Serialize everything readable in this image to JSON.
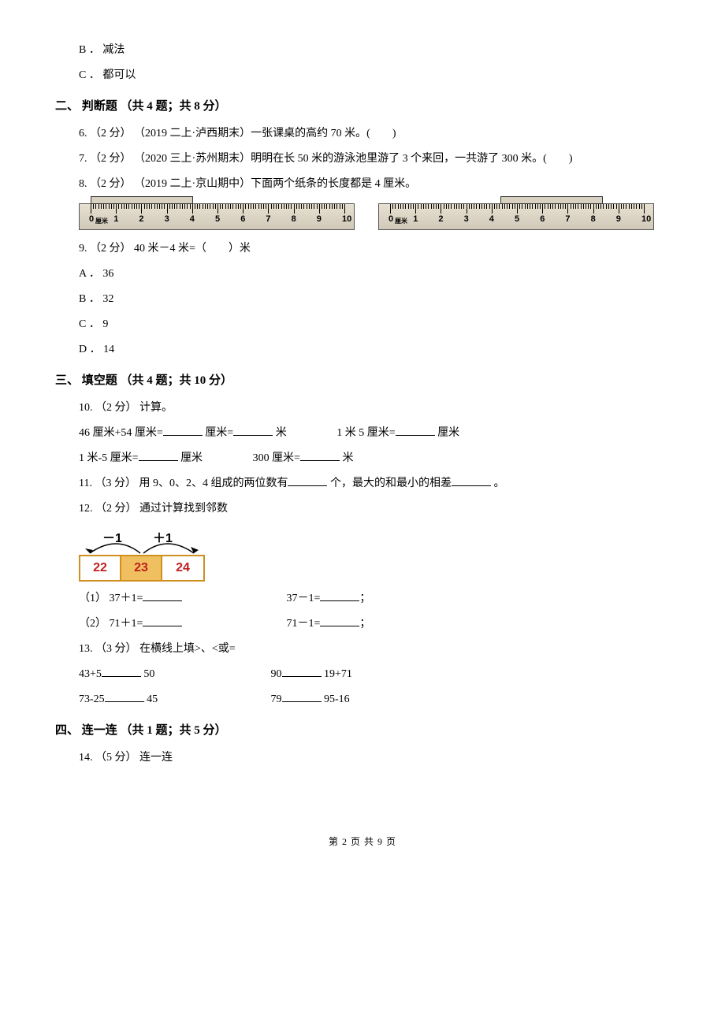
{
  "options_group_a": {
    "b": "B ． 减法",
    "c": "C ． 都可以"
  },
  "section2": {
    "heading": "二、 判断题 （共 4 题；共 8 分）",
    "q6": "6. （2 分） （2019 二上·泸西期末）一张课桌的高约 70 米。(　　)",
    "q7": "7. （2 分） （2020 三上·苏州期末）明明在长 50 米的游泳池里游了 3 个来回，一共游了 300 米。(　　)",
    "q8": "8. （2 分） （2019 二上·京山期中）下面两个纸条的长度都是 4 厘米。",
    "ruler": {
      "nums": [
        "0",
        "1",
        "2",
        "3",
        "4",
        "5",
        "6",
        "7",
        "8",
        "9",
        "10"
      ],
      "strip1_start": 0,
      "strip1_width": 130,
      "strip2_start": 140,
      "strip2_width": 130
    },
    "q9": "9. （2 分） 40 米－4 米=（　　）米",
    "q9_options": {
      "a": "A ． 36",
      "b": "B ． 32",
      "c": "C ． 9",
      "d": "D ． 14"
    }
  },
  "section3": {
    "heading": "三、 填空题 （共 4 题；共 10 分）",
    "q10": {
      "line1": "10. （2 分） 计算。",
      "p1_l": "46 厘米+54 厘米=",
      "p1_m": "厘米=",
      "p1_r": "米",
      "p2_l": "1 米 5 厘米=",
      "p2_r": "厘米",
      "p3_l": "1 米-5 厘米=",
      "p3_r": "厘米",
      "p4_l": "300 厘米=",
      "p4_r": "米"
    },
    "q11": {
      "pre": "11. （3 分） 用 9、0、2、4 组成的两位数有",
      "mid": "个，最大的和最小的相差",
      "post": "。"
    },
    "q12": {
      "line1": "12. （2 分） 通过计算找到邻数",
      "minus": "－1",
      "plus": "＋1",
      "boxes": [
        "22",
        "23",
        "24"
      ],
      "part1_a": "（1） 37＋1=",
      "part1_b": "37－1=",
      "part2_a": "（2） 71＋1=",
      "part2_b": "71－1=",
      "semi": "；"
    },
    "q13": {
      "line1": "13. （3 分） 在横线上填>、<或=",
      "a1": "43+5",
      "a2": "50",
      "b1": "90",
      "b2": "19+71",
      "c1": "73-25",
      "c2": "45",
      "d1": "79",
      "d2": "95-16"
    }
  },
  "section4": {
    "heading": "四、 连一连 （共 1 题；共 5 分）",
    "q14": "14. （5 分） 连一连"
  },
  "footer": "第 2 页 共 9 页"
}
